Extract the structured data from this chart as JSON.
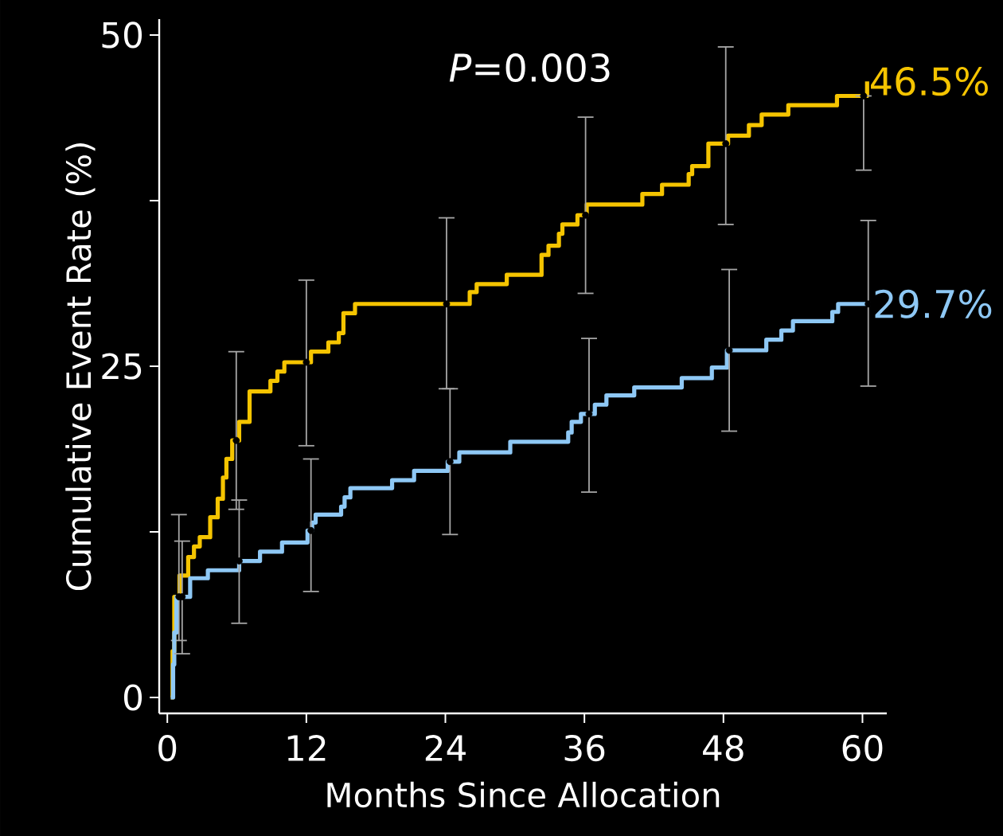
{
  "chart_data": {
    "type": "step",
    "xlabel": "Months Since Allocation",
    "ylabel": "Cumulative Event Rate (%)",
    "annotations": [
      "*P*=0.003"
    ],
    "xlim": [
      -0.7,
      62.1
    ],
    "ylim": [
      -1.2,
      51.2
    ],
    "xticks": [
      0,
      12,
      24,
      36,
      48,
      60
    ],
    "yticks": [
      0,
      {
        "value": 12.5,
        "label": null
      },
      25,
      {
        "value": 37.5,
        "label": null
      },
      50
    ],
    "series": [
      {
        "color": "#f5c400",
        "x": [
          0.3,
          0.45,
          0.6,
          1.0,
          1.05,
          1.8,
          2.3,
          2.8,
          3.7,
          4.35,
          4.8,
          5.1,
          5.6,
          5.95,
          6.2,
          7.1,
          8.9,
          9.5,
          10.1,
          12.0,
          12.4,
          13.9,
          14.8,
          15.2,
          16.2,
          24.1,
          26.1,
          26.7,
          29.3,
          32.3,
          32.9,
          33.8,
          34.1,
          35.4,
          36.1,
          36.2,
          41.0,
          42.7,
          45.0,
          45.3,
          46.7,
          48.2,
          48.4,
          50.2,
          51.3,
          53.6,
          57.8,
          60.1,
          60.4
        ],
        "values": [
          0,
          3.5,
          7.6,
          7.6,
          9.2,
          10.6,
          11.4,
          12.1,
          13.6,
          15.0,
          16.6,
          18.0,
          19.4,
          19.4,
          20.8,
          23.1,
          23.9,
          24.6,
          25.3,
          25.3,
          26.1,
          26.8,
          27.5,
          29.0,
          29.7,
          29.7,
          30.6,
          31.2,
          31.9,
          33.4,
          34.1,
          35.0,
          35.7,
          36.4,
          36.4,
          37.2,
          38.0,
          38.7,
          39.5,
          40.1,
          41.8,
          41.8,
          42.4,
          43.2,
          44.0,
          44.7,
          45.4,
          45.4,
          46.5
        ],
        "errors": [
          null,
          null,
          null,
          [
            4.3,
            13.8
          ],
          null,
          null,
          null,
          null,
          null,
          null,
          null,
          null,
          null,
          [
            14.2,
            26.1
          ],
          null,
          null,
          null,
          null,
          null,
          [
            19.0,
            31.5
          ],
          null,
          null,
          null,
          null,
          null,
          [
            23.3,
            36.2
          ],
          null,
          null,
          null,
          null,
          null,
          null,
          null,
          null,
          [
            30.5,
            43.8
          ],
          null,
          null,
          null,
          null,
          null,
          null,
          [
            35.7,
            49.1
          ],
          null,
          null,
          null,
          null,
          null,
          [
            39.8,
            45.4
          ],
          null
        ],
        "value_labels": [
          null,
          null,
          null,
          null,
          null,
          null,
          null,
          null,
          null,
          null,
          null,
          null,
          null,
          null,
          null,
          null,
          null,
          null,
          null,
          null,
          null,
          null,
          null,
          null,
          null,
          null,
          null,
          null,
          null,
          null,
          null,
          null,
          null,
          null,
          null,
          null,
          null,
          null,
          null,
          null,
          null,
          null,
          null,
          null,
          null,
          null,
          null,
          null,
          "46.5%"
        ]
      },
      {
        "color": "#8ec8f5",
        "x": [
          0.3,
          0.5,
          0.6,
          0.78,
          1.28,
          1.97,
          3.5,
          6.2,
          8.0,
          9.9,
          12.1,
          12.4,
          12.5,
          12.8,
          15.0,
          15.3,
          15.8,
          19.4,
          21.3,
          24.2,
          24.4,
          25.2,
          29.6,
          34.6,
          34.9,
          35.7,
          36.4,
          36.9,
          37.9,
          40.3,
          44.4,
          47.0,
          48.3,
          48.5,
          51.7,
          53.0,
          54.0,
          57.4,
          57.9,
          60.5,
          60.7
        ],
        "values": [
          0,
          2.5,
          4.9,
          7.6,
          7.6,
          9.0,
          9.6,
          10.3,
          11.0,
          11.7,
          12.6,
          12.6,
          13.2,
          13.8,
          14.4,
          15.1,
          15.8,
          16.4,
          17.1,
          17.8,
          17.8,
          18.5,
          19.3,
          20.0,
          20.8,
          21.4,
          21.4,
          22.1,
          22.8,
          23.4,
          24.1,
          24.9,
          26.2,
          26.2,
          27.0,
          27.7,
          28.4,
          29.1,
          29.7,
          29.7,
          29.7
        ],
        "errors": [
          null,
          null,
          null,
          null,
          [
            3.3,
            11.8
          ],
          null,
          null,
          [
            5.6,
            14.9
          ],
          null,
          null,
          null,
          [
            8.0,
            18.0
          ],
          null,
          null,
          null,
          null,
          null,
          null,
          null,
          null,
          [
            12.3,
            23.3
          ],
          null,
          null,
          null,
          null,
          null,
          [
            15.5,
            27.1
          ],
          null,
          null,
          null,
          null,
          null,
          null,
          [
            20.1,
            32.3
          ],
          null,
          null,
          null,
          null,
          null,
          [
            23.5,
            36.0
          ],
          null
        ],
        "value_labels": [
          null,
          null,
          null,
          null,
          null,
          null,
          null,
          null,
          null,
          null,
          null,
          null,
          null,
          null,
          null,
          null,
          null,
          null,
          null,
          null,
          null,
          null,
          null,
          null,
          null,
          null,
          null,
          null,
          null,
          null,
          null,
          null,
          null,
          null,
          null,
          null,
          null,
          null,
          null,
          null,
          "29.7%"
        ]
      }
    ]
  }
}
